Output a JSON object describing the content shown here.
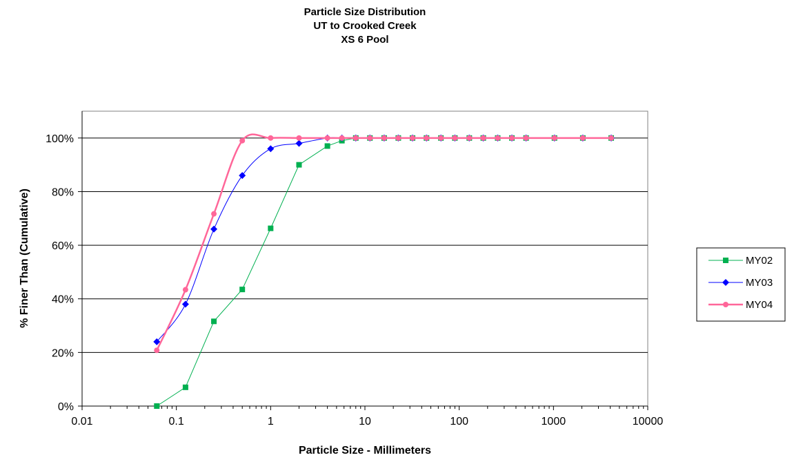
{
  "chart_data": {
    "type": "line",
    "title": [
      "Particle Size Distribution",
      "UT to Crooked Creek",
      "XS 6 Pool"
    ],
    "xlabel": "Particle Size - Millimeters",
    "ylabel": "% Finer Than (Cumulative)",
    "xscale": "log",
    "xlim": [
      0.01,
      10000
    ],
    "ylim": [
      0,
      110
    ],
    "xticks": [
      0.01,
      0.1,
      1,
      10,
      100,
      1000,
      10000
    ],
    "xtick_labels": [
      "0.01",
      "0.1",
      "1",
      "10",
      "100",
      "1000",
      "10000"
    ],
    "yticks": [
      0,
      20,
      40,
      60,
      80,
      100
    ],
    "ytick_labels": [
      "0%",
      "20%",
      "40%",
      "60%",
      "80%",
      "100%"
    ],
    "grid": "horizontal",
    "legend_position": "right",
    "x": [
      0.062,
      0.125,
      0.25,
      0.5,
      1,
      2,
      4,
      5.7,
      8,
      11.3,
      16,
      22.6,
      32,
      45,
      64,
      90,
      128,
      180,
      256,
      362,
      512,
      1024,
      2048,
      4096
    ],
    "series": [
      {
        "name": "MY02",
        "color": "#00b050",
        "marker": "square",
        "smooth": false,
        "values": [
          0,
          7,
          31.6,
          43.5,
          66.3,
          90,
          97,
          99,
          100,
          100,
          100,
          100,
          100,
          100,
          100,
          100,
          100,
          100,
          100,
          100,
          100,
          100,
          100,
          100
        ]
      },
      {
        "name": "MY03",
        "color": "#0000ff",
        "marker": "diamond",
        "smooth": true,
        "values": [
          24,
          38,
          66,
          86,
          96,
          98,
          100,
          100,
          100,
          100,
          100,
          100,
          100,
          100,
          100,
          100,
          100,
          100,
          100,
          100,
          100,
          100,
          100,
          100
        ]
      },
      {
        "name": "MY04",
        "color": "#ff6699",
        "marker": "circle",
        "smooth": true,
        "values": [
          20.8,
          43.4,
          71.7,
          99,
          100,
          100,
          100,
          100,
          100,
          100,
          100,
          100,
          100,
          100,
          100,
          100,
          100,
          100,
          100,
          100,
          100,
          100,
          100,
          100
        ]
      }
    ]
  }
}
